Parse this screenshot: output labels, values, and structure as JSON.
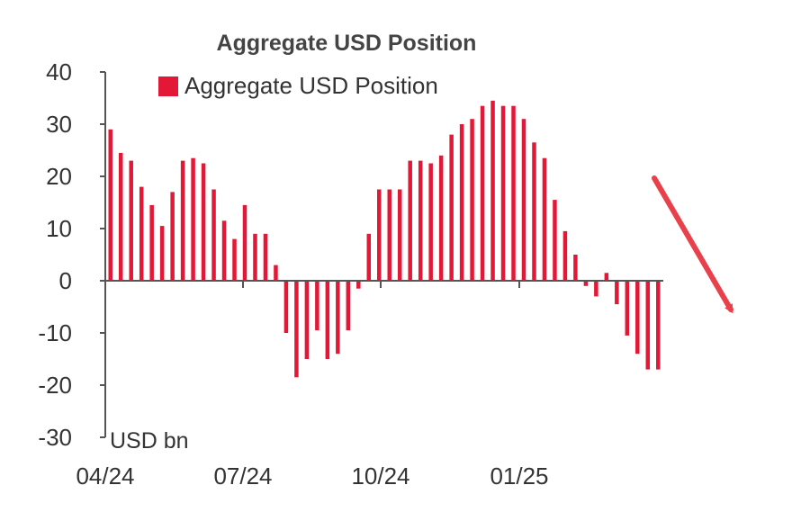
{
  "chart_data": {
    "type": "bar",
    "title": "Aggregate USD Position",
    "unit_label": "USD bn",
    "ylim": [
      -30,
      40
    ],
    "yticks": [
      40,
      30,
      20,
      10,
      0,
      -10,
      -20,
      -30
    ],
    "x_tick_labels": [
      "04/24",
      "07/24",
      "10/24",
      "01/25"
    ],
    "legend": "top",
    "grid": false,
    "series": [
      {
        "name": "Aggregate USD Position",
        "color": "#e31837",
        "values": [
          29,
          24.5,
          23,
          18,
          14.5,
          10.5,
          17,
          23,
          23.5,
          22.5,
          17.5,
          11.5,
          8,
          14.5,
          9,
          9,
          3,
          -10,
          -18.5,
          -15,
          -9.5,
          -15,
          -14,
          -9.5,
          -1.5,
          9,
          17.5,
          17.5,
          17.5,
          23,
          23,
          22.5,
          24,
          28,
          30,
          31,
          33.5,
          34.5,
          33.5,
          33.5,
          31,
          26.5,
          23.5,
          15.5,
          9.5,
          5,
          -1,
          -3,
          1.5,
          -4.5,
          -10.5,
          -14,
          -17,
          -17
        ]
      }
    ],
    "arrow_color": "#e8414b"
  }
}
